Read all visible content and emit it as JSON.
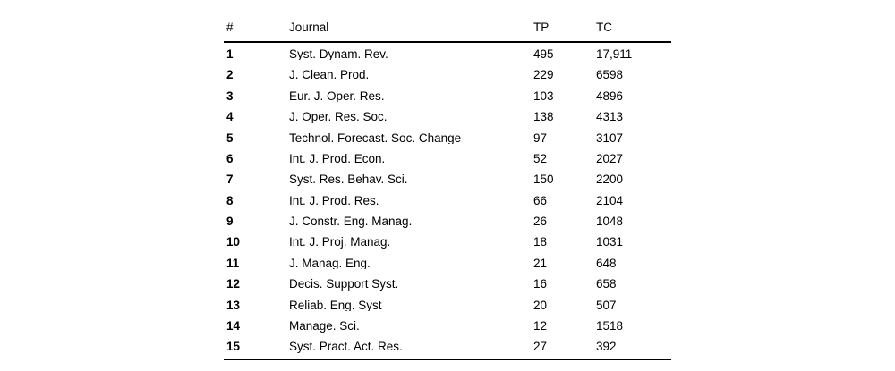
{
  "page": {
    "background_color": "#ffffff",
    "text_color": "#000000",
    "rule_color": "#000000"
  },
  "table": {
    "columns": [
      {
        "key": "rank",
        "label": "#"
      },
      {
        "key": "journal",
        "label": "Journal"
      },
      {
        "key": "tp",
        "label": "TP"
      },
      {
        "key": "tc",
        "label": "TC"
      }
    ],
    "rows": [
      {
        "rank": "1",
        "journal": "Syst. Dynam. Rev.",
        "tp": "495",
        "tc": "17,911"
      },
      {
        "rank": "2",
        "journal": "J. Clean. Prod.",
        "tp": "229",
        "tc": "6598"
      },
      {
        "rank": "3",
        "journal": "Eur. J. Oper. Res.",
        "tp": "103",
        "tc": "4896"
      },
      {
        "rank": "4",
        "journal": "J. Oper. Res. Soc.",
        "tp": "138",
        "tc": "4313"
      },
      {
        "rank": "5",
        "journal": "Technol. Forecast. Soc. Change",
        "tp": "97",
        "tc": "3107"
      },
      {
        "rank": "6",
        "journal": "Int. J. Prod. Econ.",
        "tp": "52",
        "tc": "2027"
      },
      {
        "rank": "7",
        "journal": "Syst. Res. Behav. Sci.",
        "tp": "150",
        "tc": "2200"
      },
      {
        "rank": "8",
        "journal": "Int. J. Prod. Res.",
        "tp": "66",
        "tc": "2104"
      },
      {
        "rank": "9",
        "journal": "J. Constr. Eng. Manag.",
        "tp": "26",
        "tc": "1048"
      },
      {
        "rank": "10",
        "journal": "Int. J. Proj. Manag.",
        "tp": "18",
        "tc": "1031"
      },
      {
        "rank": "11",
        "journal": "J. Manag. Eng.",
        "tp": "21",
        "tc": "648"
      },
      {
        "rank": "12",
        "journal": "Decis. Support Syst.",
        "tp": "16",
        "tc": "658"
      },
      {
        "rank": "13",
        "journal": "Reliab. Eng. Syst",
        "tp": "20",
        "tc": "507"
      },
      {
        "rank": "14",
        "journal": "Manage. Sci.",
        "tp": "12",
        "tc": "1518"
      },
      {
        "rank": "15",
        "journal": "Syst. Pract. Act. Res.",
        "tp": "27",
        "tc": "392"
      }
    ]
  }
}
